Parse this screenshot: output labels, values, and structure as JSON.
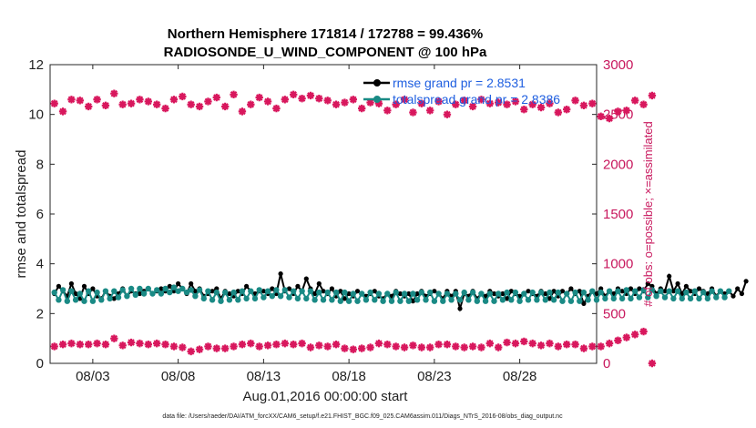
{
  "chart_data": {
    "type": "line",
    "title_line1": "Northern Hemisphere 171814 / 172788 = 99.436%",
    "title_line2": "RADIOSONDE_U_WIND_COMPONENT @ 100 hPa",
    "xlabel": "Aug.01,2016 00:00:00 start",
    "ylabel_left": "rmse and totalspread",
    "ylabel_right": "# of obs: o=possible; ×=assimilated",
    "footnote": "data file: /Users/raeder/DAI/ATM_forcXX/CAM6_setup/f.e21.FHIST_BGC.f09_025.CAM6assim.011/Diags_NTrS_2016-08/obs_diag_output.nc",
    "x_range_days": [
      0.5,
      32.5
    ],
    "x_ticks": [
      {
        "day": 3,
        "label": "08/03"
      },
      {
        "day": 8,
        "label": "08/08"
      },
      {
        "day": 13,
        "label": "08/13"
      },
      {
        "day": 18,
        "label": "08/18"
      },
      {
        "day": 23,
        "label": "08/23"
      },
      {
        "day": 28,
        "label": "08/28"
      }
    ],
    "ylim_left": [
      0,
      12
    ],
    "yticks_left": [
      "0",
      "2",
      "4",
      "6",
      "8",
      "10",
      "12"
    ],
    "ylim_right": [
      0,
      3000
    ],
    "yticks_right": [
      "0",
      "500",
      "1000",
      "1500",
      "2000",
      "2500",
      "3000"
    ],
    "legend": [
      {
        "label": "rmse  grand pr = 2.8531"
      },
      {
        "label": "totalspread grand pr = 2.8386"
      }
    ],
    "colors": {
      "rmse": "#000000",
      "totalspread": "#1a8a85",
      "obs": "#d8175d",
      "right_axis": "#c8175d",
      "legend_text": "#1f5fe0"
    },
    "series": [
      {
        "name": "rmse",
        "axis": "left",
        "x_start": 0.75,
        "x_step": 0.25,
        "values": [
          2.8,
          3.1,
          2.9,
          2.7,
          3.2,
          2.8,
          2.6,
          3.1,
          2.8,
          3.0,
          2.7,
          2.6,
          2.9,
          2.7,
          2.6,
          2.8,
          3.0,
          2.7,
          2.9,
          2.8,
          2.8,
          2.9,
          3.0,
          2.8,
          2.9,
          3.0,
          2.9,
          3.1,
          2.9,
          3.2,
          3.0,
          2.8,
          3.2,
          2.9,
          3.0,
          2.7,
          2.8,
          2.9,
          3.0,
          2.6,
          2.9,
          2.8,
          2.7,
          2.9,
          2.8,
          3.1,
          2.9,
          2.8,
          2.9,
          2.9,
          2.8,
          3.0,
          2.8,
          3.6,
          2.9,
          3.0,
          2.8,
          3.1,
          2.9,
          3.4,
          3.0,
          2.8,
          3.2,
          2.9,
          2.8,
          3.0,
          2.7,
          2.9,
          2.6,
          2.8,
          2.7,
          2.9,
          2.8,
          2.7,
          2.8,
          2.9,
          2.7,
          2.6,
          2.8,
          2.7,
          2.9,
          2.8,
          2.7,
          2.8,
          2.5,
          2.8,
          2.9,
          2.7,
          2.8,
          2.9,
          2.8,
          2.6,
          2.9,
          2.7,
          2.9,
          2.2,
          2.8,
          2.7,
          2.9,
          2.6,
          2.8,
          2.7,
          2.9,
          2.8,
          2.7,
          2.8,
          2.6,
          2.9,
          2.8,
          2.7,
          2.8,
          2.9,
          2.8,
          2.7,
          2.9,
          2.8,
          2.6,
          2.9,
          2.7,
          2.9,
          2.8,
          3.0,
          2.8,
          2.9,
          2.4,
          2.7,
          2.9,
          2.8,
          3.0,
          2.7,
          2.9,
          2.8,
          3.0,
          2.9,
          2.8,
          3.0,
          2.8,
          3.0,
          2.9,
          3.2,
          3.1,
          2.8,
          3.0,
          2.9,
          3.5,
          2.9,
          3.2,
          2.8,
          3.1,
          2.9,
          2.8,
          3.0,
          2.9,
          2.8,
          3.0,
          2.7,
          2.9,
          2.8,
          2.9,
          2.7,
          3.0,
          2.8,
          3.3
        ]
      },
      {
        "name": "totalspread",
        "axis": "left",
        "x_start": 0.75,
        "x_step": 0.25,
        "values": [
          2.85,
          2.55,
          2.95,
          2.5,
          2.9,
          2.55,
          2.8,
          2.5,
          2.9,
          2.5,
          2.85,
          2.55,
          2.9,
          2.6,
          2.9,
          2.65,
          2.95,
          2.7,
          3.0,
          2.75,
          3.0,
          2.8,
          3.0,
          2.8,
          2.95,
          2.8,
          3.0,
          2.85,
          3.05,
          2.9,
          3.0,
          2.85,
          2.95,
          2.7,
          2.95,
          2.6,
          2.9,
          2.55,
          2.85,
          2.5,
          2.85,
          2.55,
          2.85,
          2.55,
          2.9,
          2.6,
          2.9,
          2.6,
          2.95,
          2.65,
          2.9,
          2.7,
          2.95,
          2.7,
          2.95,
          2.65,
          2.9,
          2.6,
          2.9,
          2.6,
          2.9,
          2.55,
          2.85,
          2.55,
          2.85,
          2.55,
          2.85,
          2.5,
          2.85,
          2.5,
          2.8,
          2.5,
          2.8,
          2.55,
          2.85,
          2.55,
          2.8,
          2.5,
          2.8,
          2.5,
          2.85,
          2.5,
          2.8,
          2.5,
          2.8,
          2.55,
          2.85,
          2.55,
          2.85,
          2.5,
          2.8,
          2.5,
          2.8,
          2.55,
          2.8,
          2.55,
          2.85,
          2.55,
          2.85,
          2.5,
          2.8,
          2.5,
          2.8,
          2.5,
          2.8,
          2.55,
          2.85,
          2.55,
          2.85,
          2.5,
          2.8,
          2.55,
          2.85,
          2.55,
          2.85,
          2.55,
          2.85,
          2.55,
          2.85,
          2.5,
          2.8,
          2.5,
          2.85,
          2.5,
          2.85,
          2.55,
          2.9,
          2.55,
          2.85,
          2.6,
          2.9,
          2.6,
          2.9,
          2.6,
          2.95,
          2.6,
          2.9,
          2.65,
          2.95,
          2.65,
          2.95,
          2.7,
          2.9,
          2.65,
          2.9,
          2.6,
          2.9,
          2.6,
          2.85,
          2.6,
          2.9,
          2.6,
          2.85,
          2.6,
          2.9,
          2.65,
          2.9,
          2.65,
          2.9
        ]
      },
      {
        "name": "obs_upper",
        "axis": "right",
        "x_start": 0.75,
        "x_step": 0.5,
        "values": [
          2610,
          2530,
          2650,
          2640,
          2580,
          2650,
          2590,
          2710,
          2600,
          2610,
          2650,
          2630,
          2600,
          2560,
          2650,
          2680,
          2600,
          2580,
          2630,
          2670,
          2580,
          2700,
          2530,
          2600,
          2670,
          2630,
          2560,
          2650,
          2700,
          2660,
          2690,
          2660,
          2640,
          2600,
          2620,
          2650,
          2560,
          2620,
          2610,
          2540,
          2600,
          2650,
          2520,
          2610,
          2540,
          2630,
          2500,
          2600,
          2640,
          2580,
          2650,
          2610,
          2620,
          2600,
          2630,
          2550,
          2600,
          2570,
          2610,
          2520,
          2550,
          2640,
          2590,
          2610,
          2480,
          2460,
          2530,
          2540,
          2640,
          2600,
          2690
        ]
      },
      {
        "name": "obs_lower",
        "axis": "right",
        "x_start": 0.75,
        "x_step": 0.5,
        "values": [
          170,
          190,
          200,
          190,
          190,
          200,
          190,
          250,
          180,
          210,
          200,
          190,
          200,
          190,
          170,
          160,
          120,
          140,
          170,
          150,
          150,
          170,
          190,
          200,
          170,
          180,
          190,
          200,
          190,
          200,
          160,
          180,
          170,
          190,
          150,
          140,
          150,
          160,
          200,
          190,
          170,
          160,
          180,
          160,
          160,
          190,
          190,
          170,
          160,
          170,
          160,
          200,
          160,
          210,
          200,
          220,
          200,
          180,
          200,
          170,
          190,
          190,
          150,
          170,
          170,
          200,
          230,
          260,
          290,
          320,
          0
        ]
      }
    ]
  }
}
